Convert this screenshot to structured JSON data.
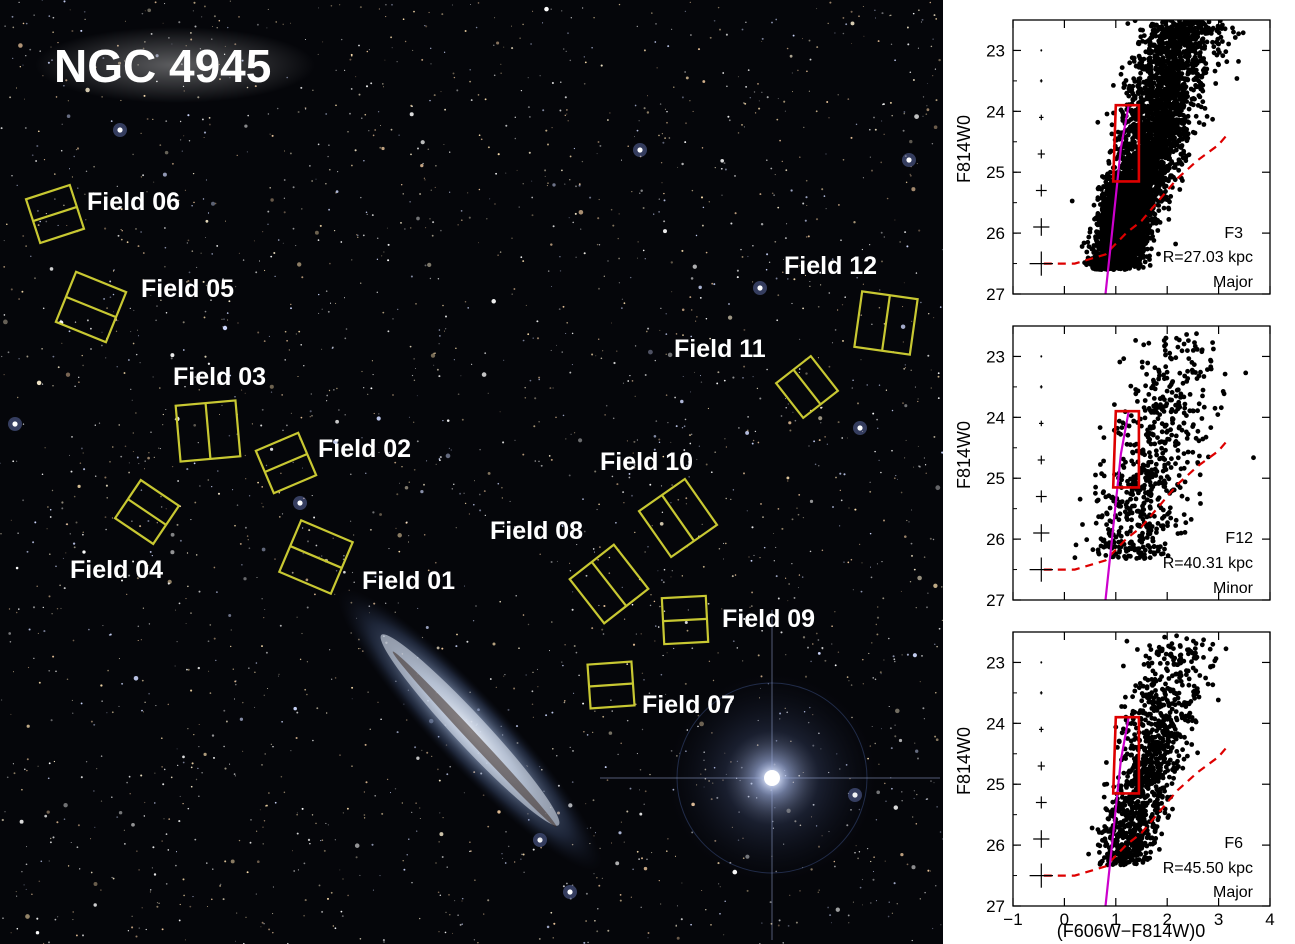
{
  "image": {
    "title": "NGC 4945",
    "fields": [
      {
        "label": "Field 01"
      },
      {
        "label": "Field 02"
      },
      {
        "label": "Field 03"
      },
      {
        "label": "Field 04"
      },
      {
        "label": "Field 05"
      },
      {
        "label": "Field 06"
      },
      {
        "label": "Field 07"
      },
      {
        "label": "Field 08"
      },
      {
        "label": "Field 09"
      },
      {
        "label": "Field 10"
      },
      {
        "label": "Field 11"
      },
      {
        "label": "Field 12"
      }
    ],
    "colors": {
      "footprint": "#c8c832",
      "sky": "#040508",
      "star_core": "#ffffff"
    }
  },
  "chart_data": [
    {
      "type": "scatter",
      "panel": "F3",
      "field": "F3",
      "distance": "R=27.03 kpc",
      "axis": "Major",
      "xlabel": "(F606W−F814W)0",
      "ylabel": "F814W0",
      "xlim": [
        -1,
        4
      ],
      "ylim": [
        27,
        22.5
      ],
      "xticks": [
        "−1",
        "0",
        "1",
        "2",
        "3",
        "4"
      ],
      "yticks": [
        "23",
        "24",
        "25",
        "26",
        "27"
      ],
      "density": "high",
      "colors": {
        "points": "#000000",
        "box": "#dd0000",
        "isochrone": "#cc00cc",
        "completeness": "#dd0000"
      }
    },
    {
      "type": "scatter",
      "panel": "F12",
      "field": "F12",
      "distance": "R=40.31 kpc",
      "axis": "Minor",
      "xlabel": "(F606W−F814W)0",
      "ylabel": "F814W0",
      "xlim": [
        -1,
        4
      ],
      "ylim": [
        27,
        22.5
      ],
      "xticks": [
        "−1",
        "0",
        "1",
        "2",
        "3",
        "4"
      ],
      "yticks": [
        "23",
        "24",
        "25",
        "26",
        "27"
      ],
      "density": "low",
      "colors": {
        "points": "#000000",
        "box": "#dd0000",
        "isochrone": "#cc00cc",
        "completeness": "#dd0000"
      }
    },
    {
      "type": "scatter",
      "panel": "F6",
      "field": "F6",
      "distance": "R=45.50 kpc",
      "axis": "Major",
      "xlabel": "(F606W−F814W)0",
      "ylabel": "F814W0",
      "xlim": [
        -1,
        4
      ],
      "ylim": [
        27,
        22.5
      ],
      "xticks": [
        "−1",
        "0",
        "1",
        "2",
        "3",
        "4"
      ],
      "yticks": [
        "23",
        "24",
        "25",
        "26",
        "27"
      ],
      "density": "medium",
      "colors": {
        "points": "#000000",
        "box": "#dd0000",
        "isochrone": "#cc00cc",
        "completeness": "#dd0000"
      }
    }
  ]
}
